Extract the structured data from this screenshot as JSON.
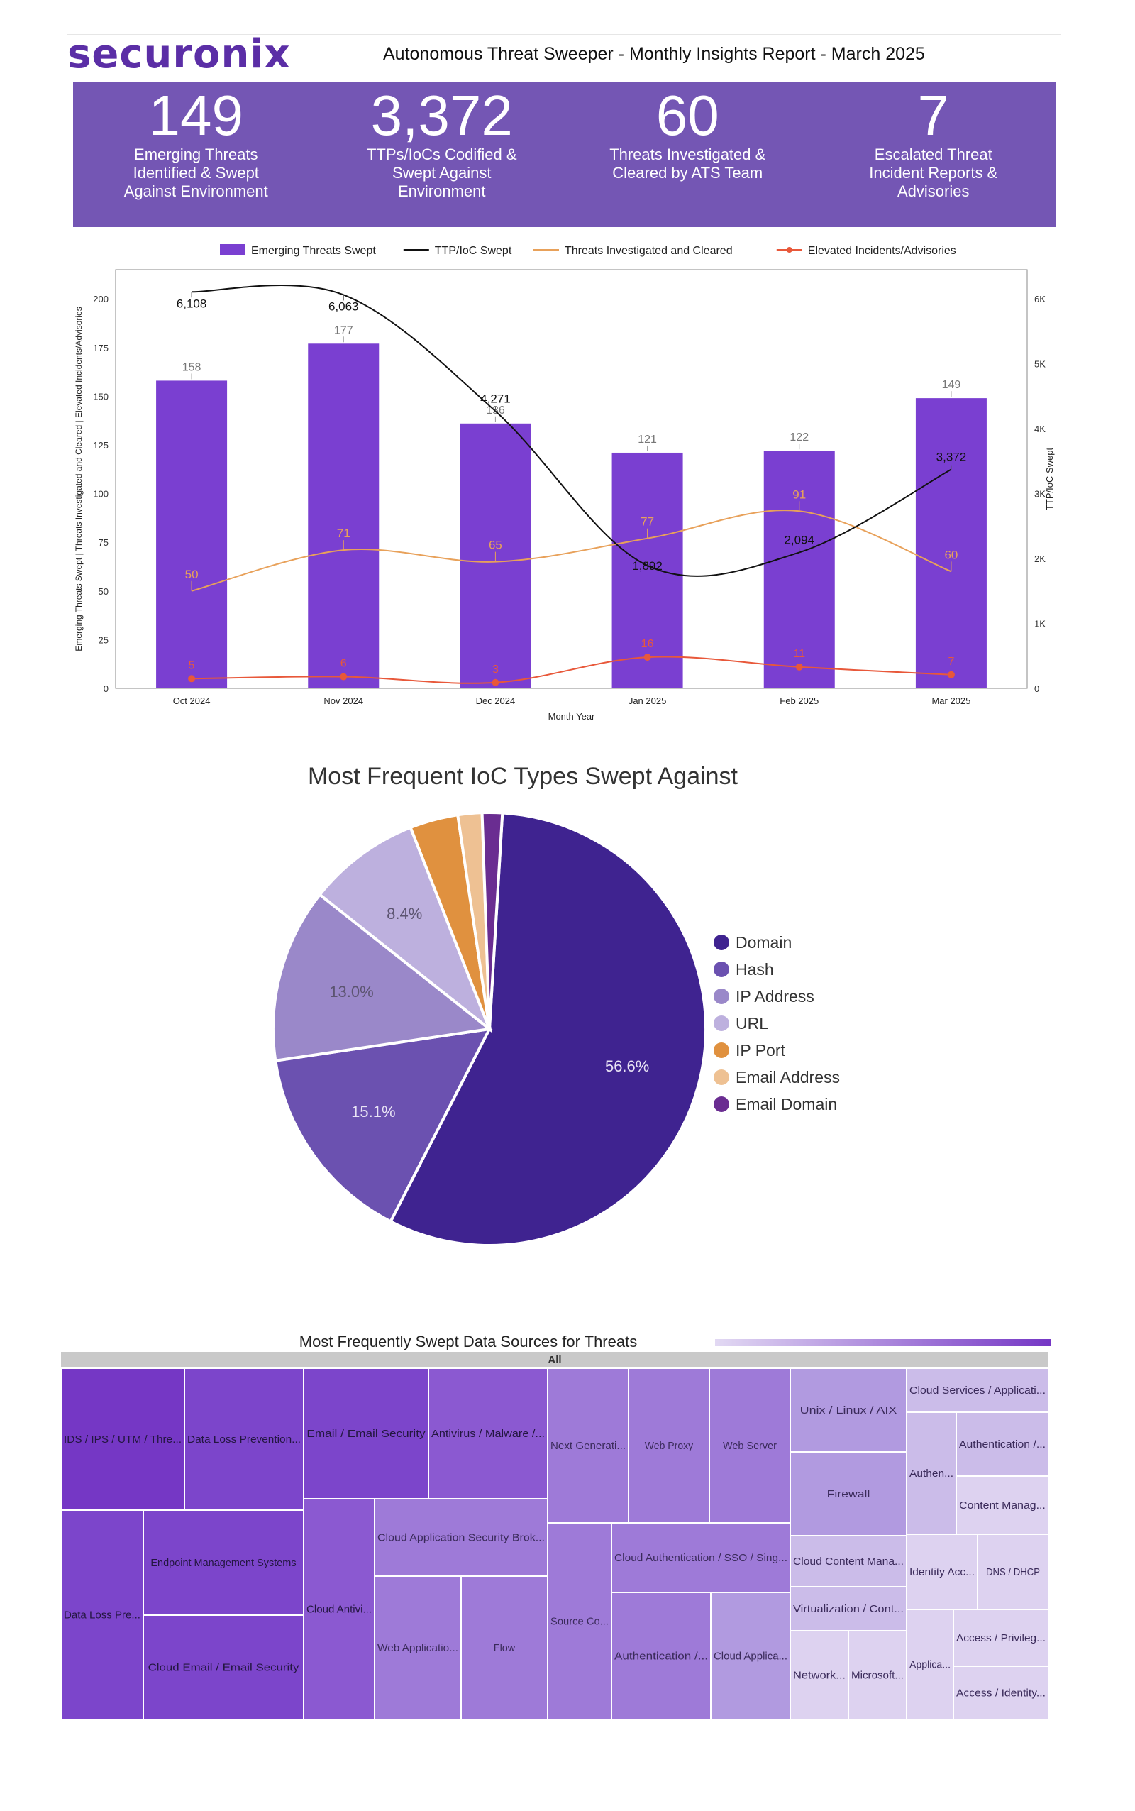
{
  "header": {
    "logo_text": "securonix",
    "title": "Autonomous Threat Sweeper - Monthly Insights Report - March 2025"
  },
  "kpis": [
    {
      "value": "149",
      "label": "Emerging Threats Identified & Swept Against Environment"
    },
    {
      "value": "3,372",
      "label": "TTPs/IoCs Codified & Swept Against Environment"
    },
    {
      "value": "60",
      "label": "Threats Investigated & Cleared by ATS Team"
    },
    {
      "value": "7",
      "label": "Escalated Threat Incident Reports & Advisories"
    }
  ],
  "chart_data": [
    {
      "type": "bar",
      "categories": [
        "Oct 2024",
        "Nov 2024",
        "Dec 2024",
        "Jan 2025",
        "Feb 2025",
        "Mar 2025"
      ],
      "xlabel": "Month Year",
      "ylabel": "Emerging Threats Swept | Threats Investigated and Cleared | Elevated Incidents/Advisories",
      "y2label": "TTP/IoC Swept",
      "ylim": [
        0,
        215
      ],
      "y2lim": [
        0,
        6450
      ],
      "yticks": [
        0,
        25,
        50,
        75,
        100,
        125,
        150,
        175,
        200
      ],
      "y2ticks": [
        0,
        1000,
        2000,
        3000,
        4000,
        5000,
        6000
      ],
      "y2ticklabels": [
        "0",
        "1K",
        "2K",
        "3K",
        "4K",
        "5K",
        "6K"
      ],
      "legend_position": "top",
      "series": [
        {
          "name": "Emerging Threats Swept",
          "kind": "bar",
          "axis": "left",
          "color": "#7a3fd1",
          "values": [
            158,
            177,
            136,
            121,
            122,
            149
          ]
        },
        {
          "name": "TTP/IoC Swept",
          "kind": "line",
          "axis": "right",
          "color": "#111111",
          "values": [
            6108,
            6063,
            4271,
            1892,
            2094,
            3372
          ],
          "labels": [
            "6,108",
            "6,063",
            "4,271",
            "1,892",
            "2,094",
            "3,372"
          ]
        },
        {
          "name": "Threats Investigated and Cleared",
          "kind": "line",
          "axis": "left",
          "color": "#e8a15a",
          "values": [
            50,
            71,
            65,
            77,
            91,
            60
          ]
        },
        {
          "name": "Elevated Incidents/Advisories",
          "kind": "line-marker",
          "axis": "left",
          "color": "#e8583a",
          "values": [
            5,
            6,
            3,
            16,
            11,
            7
          ]
        }
      ]
    },
    {
      "type": "pie",
      "title": "Most Frequent IoC Types Swept Against",
      "legend_position": "right",
      "categories": [
        "Domain",
        "Hash",
        "IP Address",
        "URL",
        "IP Port",
        "Email Address",
        "Email Domain"
      ],
      "values": [
        56.6,
        15.1,
        13.0,
        8.4,
        3.6,
        1.8,
        1.5
      ],
      "labels": [
        "56.6%",
        "15.1%",
        "13.0%",
        "8.4%",
        "",
        "",
        ""
      ],
      "colors": [
        "#3f2390",
        "#6b51b0",
        "#9a88c9",
        "#bdb0de",
        "#e0913f",
        "#eec193",
        "#6a2d91"
      ]
    },
    {
      "type": "treemap",
      "title": "Most Frequently Swept Data Sources for Threats",
      "root": "All",
      "tiles": [
        {
          "label": "IDS / IPS / UTM / Thre...",
          "shade": 0
        },
        {
          "label": "Data Loss Prevention...",
          "shade": 1
        },
        {
          "label": "Data Loss Pre...",
          "shade": 1
        },
        {
          "label": "Endpoint Management Systems",
          "shade": 1
        },
        {
          "label": "Cloud Email / Email Security",
          "shade": 1
        },
        {
          "label": "Email / Email Security",
          "shade": 1
        },
        {
          "label": "Antivirus / Malware /...",
          "shade": 2
        },
        {
          "label": "Cloud Antivi...",
          "shade": 2
        },
        {
          "label": "Cloud Application Security Brok...",
          "shade": 3
        },
        {
          "label": "Web Applicatio...",
          "shade": 3
        },
        {
          "label": "Flow",
          "shade": 3
        },
        {
          "label": "Next Generati...",
          "shade": 3
        },
        {
          "label": "Web Proxy",
          "shade": 3
        },
        {
          "label": "Web Server",
          "shade": 3
        },
        {
          "label": "Source Co...",
          "shade": 3
        },
        {
          "label": "Cloud Authentication / SSO / Sing...",
          "shade": 3
        },
        {
          "label": "Authentication /...",
          "shade": 3
        },
        {
          "label": "Cloud Applica...",
          "shade": 4
        },
        {
          "label": "Unix / Linux / AIX",
          "shade": 4
        },
        {
          "label": "Firewall",
          "shade": 4
        },
        {
          "label": "Cloud Content Mana...",
          "shade": 5
        },
        {
          "label": "Virtualization / Cont...",
          "shade": 5
        },
        {
          "label": "Network...",
          "shade": 6
        },
        {
          "label": "Microsoft...",
          "shade": 6
        },
        {
          "label": "Cloud Services / Applicati...",
          "shade": 5
        },
        {
          "label": "Authen...",
          "shade": 5
        },
        {
          "label": "Authentication /...",
          "shade": 5
        },
        {
          "label": "Content Manag...",
          "shade": 6
        },
        {
          "label": "Identity Acc...",
          "shade": 6
        },
        {
          "label": "DNS / DHCP",
          "shade": 6
        },
        {
          "label": "Applica...",
          "shade": 6
        },
        {
          "label": "Access / Privileg...",
          "shade": 6
        },
        {
          "label": "Access / Identity...",
          "shade": 6
        }
      ],
      "shades": [
        "#7537c5",
        "#7c45cb",
        "#8b59d1",
        "#9e7ad8",
        "#b19ae0",
        "#cbbce9",
        "#ddd2f0"
      ]
    }
  ]
}
